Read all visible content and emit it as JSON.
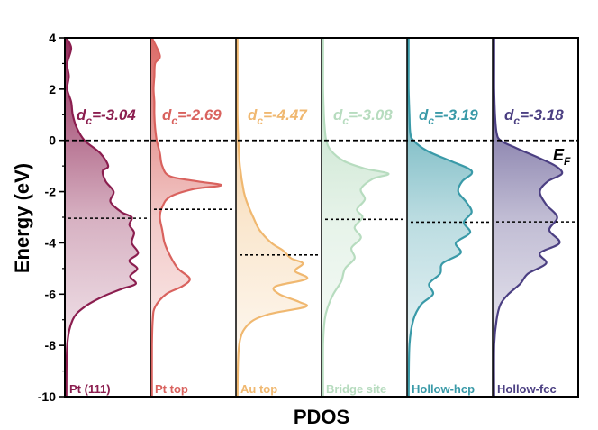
{
  "chart_data": {
    "type": "area",
    "xlabel": "PDOS",
    "ylabel": "Energy (eV)",
    "ylim": [
      -10,
      4
    ],
    "yticks": [
      "-10",
      "-8",
      "-6",
      "-4",
      "-2",
      "0",
      "2",
      "4"
    ],
    "fermi_level": 0,
    "fermi_label": "E",
    "fermi_sub": "F",
    "grid": false,
    "series": [
      {
        "name": "Pt (111)",
        "dc_prefix": "d",
        "dc_sub": "c",
        "dc_text": "=-3.04",
        "d_band_center": -3.04,
        "color": "#8b1e4f",
        "y": [
          4,
          3.6,
          3,
          2.5,
          2,
          1.5,
          1,
          0.5,
          0,
          -0.5,
          -1,
          -1.2,
          -1.6,
          -2,
          -2.4,
          -2.8,
          -3,
          -3.3,
          -3.6,
          -4,
          -4.4,
          -4.7,
          -5,
          -5.3,
          -5.6,
          -5.8,
          -6.1,
          -6.5,
          -7,
          -8,
          -10
        ],
        "dos": [
          0.02,
          0.08,
          0.03,
          0.05,
          0.03,
          0.08,
          0.1,
          0.15,
          0.25,
          0.45,
          0.55,
          0.48,
          0.52,
          0.62,
          0.58,
          0.72,
          0.85,
          0.82,
          0.88,
          0.85,
          0.93,
          0.82,
          0.92,
          0.83,
          0.9,
          0.72,
          0.48,
          0.25,
          0.1,
          0.03,
          0.02
        ]
      },
      {
        "name": "Pt top",
        "dc_prefix": "d",
        "dc_sub": "c",
        "dc_text": "=-2.69",
        "d_band_center": -2.69,
        "color": "#d9625e",
        "y": [
          4,
          3.3,
          3,
          2.5,
          2,
          1.5,
          1,
          0.5,
          0,
          -0.5,
          -1,
          -1.4,
          -1.6,
          -1.75,
          -1.9,
          -2.2,
          -2.6,
          -3,
          -3.5,
          -4,
          -4.5,
          -5,
          -5.4,
          -5.7,
          -6,
          -6.5,
          -7,
          -8,
          -10
        ],
        "dos": [
          0.02,
          0.12,
          0.06,
          0.05,
          0.04,
          0.05,
          0.05,
          0.06,
          0.08,
          0.12,
          0.15,
          0.25,
          0.6,
          0.9,
          0.55,
          0.25,
          0.15,
          0.12,
          0.15,
          0.18,
          0.25,
          0.35,
          0.5,
          0.4,
          0.2,
          0.06,
          0.03,
          0.02,
          0.02
        ]
      },
      {
        "name": "Au top",
        "dc_prefix": "d",
        "dc_sub": "c",
        "dc_text": "=-4.47",
        "d_band_center": -4.47,
        "color": "#f0b870",
        "y": [
          4,
          3,
          2,
          1,
          0,
          -1,
          -2,
          -2.5,
          -3,
          -3.5,
          -4,
          -4.3,
          -4.6,
          -4.8,
          -5.1,
          -5.4,
          -5.7,
          -6,
          -6.3,
          -6.5,
          -6.8,
          -7.2,
          -8,
          -10
        ],
        "dos": [
          0.02,
          0.02,
          0.02,
          0.02,
          0.03,
          0.05,
          0.1,
          0.15,
          0.22,
          0.3,
          0.45,
          0.6,
          0.7,
          0.85,
          0.75,
          0.9,
          0.5,
          0.55,
          0.8,
          0.88,
          0.4,
          0.15,
          0.04,
          0.02
        ]
      },
      {
        "name": "Bridge site",
        "dc_prefix": "d",
        "dc_sub": "c",
        "dc_text": "=-3.08",
        "d_band_center": -3.08,
        "color": "#b7dcbf",
        "y": [
          4,
          3,
          2,
          1,
          0.5,
          0,
          -0.4,
          -0.8,
          -1.1,
          -1.3,
          -1.5,
          -1.9,
          -2.3,
          -2.7,
          -3,
          -3.4,
          -3.8,
          -4.2,
          -4.6,
          -5,
          -5.5,
          -6,
          -6.5,
          -7,
          -8,
          -10
        ],
        "dos": [
          0.02,
          0.02,
          0.02,
          0.03,
          0.04,
          0.06,
          0.12,
          0.28,
          0.55,
          0.85,
          0.65,
          0.5,
          0.55,
          0.45,
          0.52,
          0.42,
          0.5,
          0.38,
          0.42,
          0.3,
          0.25,
          0.15,
          0.08,
          0.04,
          0.02,
          0.02
        ]
      },
      {
        "name": "Hollow-hcp",
        "dc_prefix": "d",
        "dc_sub": "c",
        "dc_text": "=-3.19",
        "d_band_center": -3.19,
        "color": "#3a9aa8",
        "y": [
          4,
          3,
          2,
          1,
          0.3,
          0,
          -0.4,
          -0.8,
          -1.1,
          -1.3,
          -1.6,
          -2,
          -2.4,
          -2.8,
          -3.2,
          -3.6,
          -4,
          -4.4,
          -4.8,
          -5.2,
          -5.6,
          -6,
          -6.4,
          -7,
          -8,
          -10
        ],
        "dos": [
          0.02,
          0.02,
          0.02,
          0.03,
          0.04,
          0.08,
          0.25,
          0.55,
          0.78,
          0.82,
          0.7,
          0.65,
          0.75,
          0.82,
          0.72,
          0.8,
          0.62,
          0.68,
          0.45,
          0.42,
          0.28,
          0.33,
          0.18,
          0.08,
          0.03,
          0.02
        ]
      },
      {
        "name": "Hollow-fcc",
        "dc_prefix": "d",
        "dc_sub": "c",
        "dc_text": "=-3.18",
        "d_band_center": -3.18,
        "color": "#4b3f82",
        "y": [
          4,
          3,
          2,
          1,
          0.3,
          0,
          -0.3,
          -0.7,
          -1,
          -1.3,
          -1.6,
          -2,
          -2.5,
          -3,
          -3.5,
          -4,
          -4.4,
          -4.8,
          -5.2,
          -5.6,
          -6,
          -6.4,
          -7,
          -8,
          -10
        ],
        "dos": [
          0.02,
          0.02,
          0.02,
          0.03,
          0.05,
          0.1,
          0.3,
          0.6,
          0.8,
          0.88,
          0.7,
          0.6,
          0.68,
          0.82,
          0.72,
          0.85,
          0.6,
          0.68,
          0.45,
          0.35,
          0.2,
          0.1,
          0.05,
          0.02,
          0.02
        ]
      }
    ]
  }
}
